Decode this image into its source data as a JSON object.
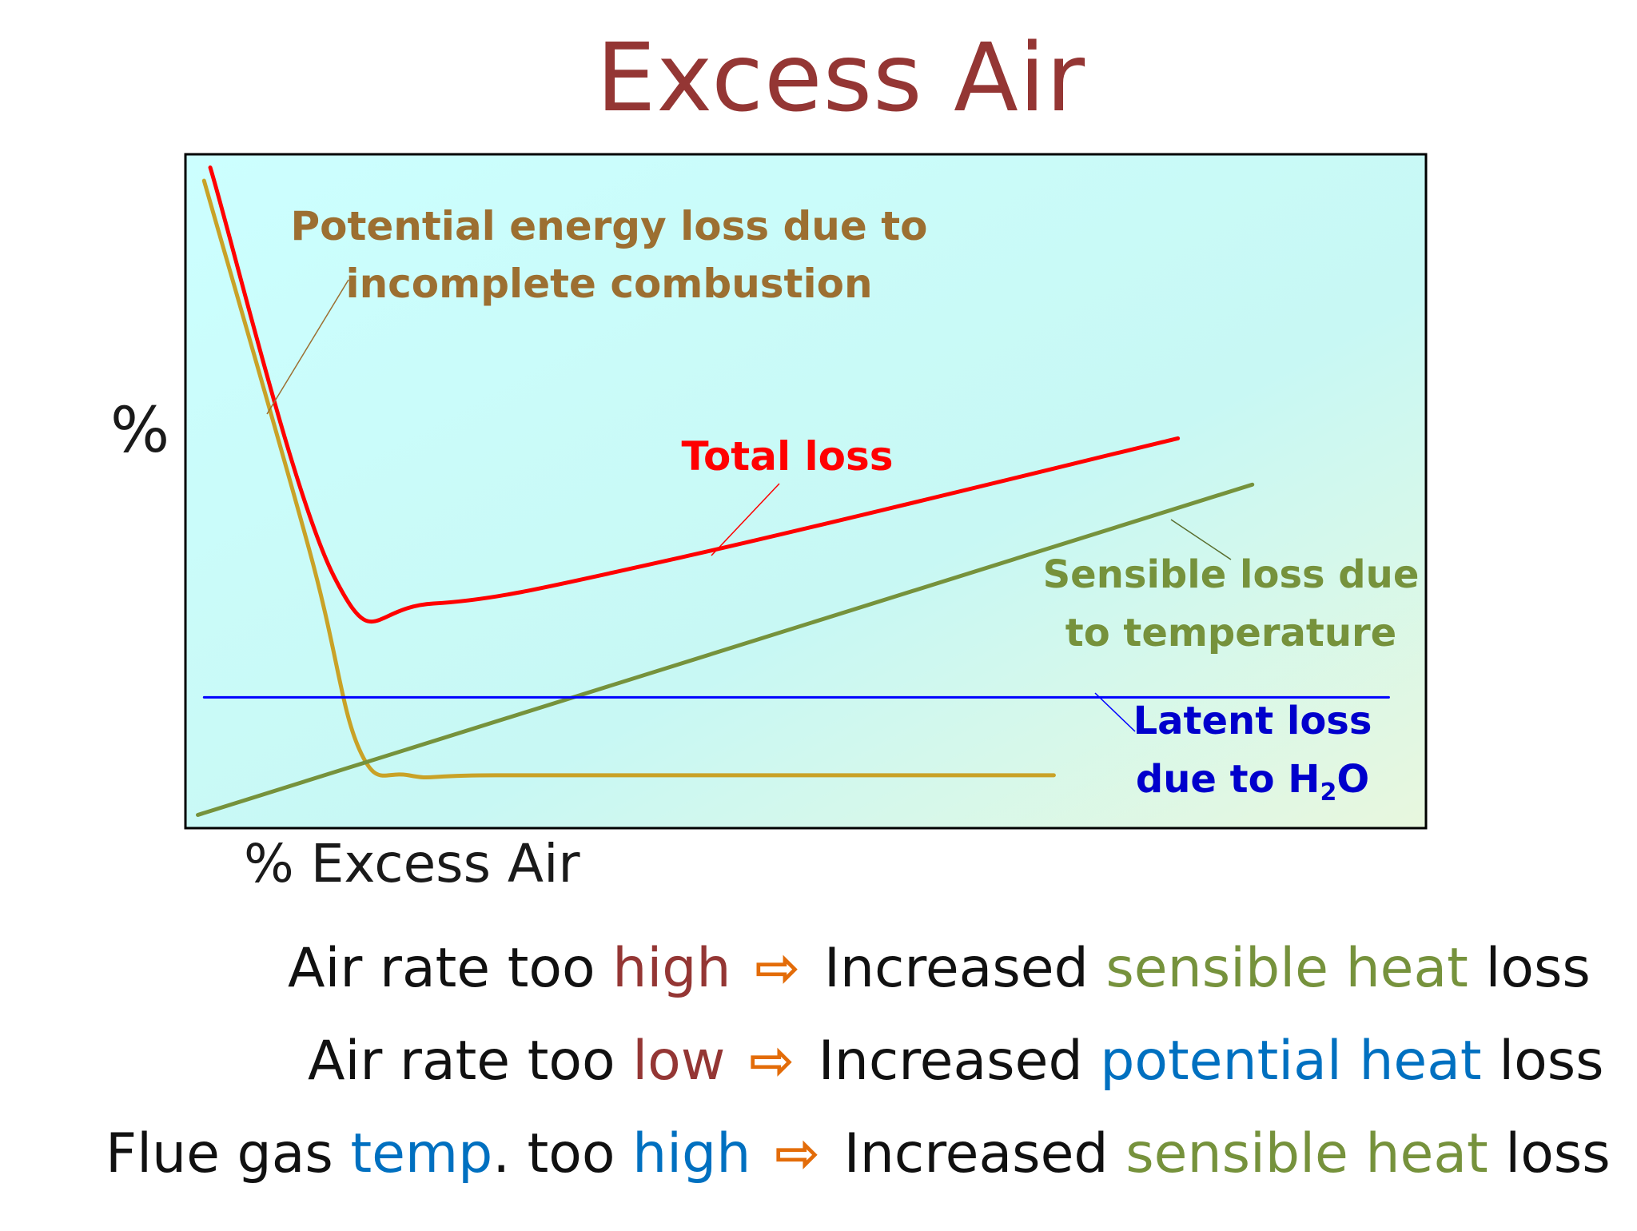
{
  "title": "Excess Air",
  "chart_data": {
    "type": "line",
    "title": "Excess Air",
    "xlabel": "% Excess Air",
    "ylabel": "%",
    "grid": false,
    "background": "#ccffff",
    "series": [
      {
        "key": "total",
        "label_lines": [
          "Total loss"
        ],
        "color": "#ff0000",
        "points": [
          [
            2,
            98
          ],
          [
            12,
            36
          ],
          [
            20,
            32
          ],
          [
            40,
            39
          ],
          [
            80,
            57
          ]
        ]
      },
      {
        "key": "potential",
        "label_lines": [
          "Potential energy loss due to",
          "incomplete combustion"
        ],
        "color": "#c9a227",
        "text_color": "#9c6f31",
        "points": [
          [
            1.5,
            96
          ],
          [
            10,
            40
          ],
          [
            14,
            10
          ],
          [
            18,
            6
          ],
          [
            25,
            6
          ],
          [
            50,
            6
          ],
          [
            70,
            6
          ]
        ]
      },
      {
        "key": "sensible",
        "label_lines": [
          "Sensible loss due",
          "to temperature"
        ],
        "color": "#76923c",
        "text_color": "#76923c",
        "points": [
          [
            1,
            0
          ],
          [
            86,
            50
          ]
        ]
      },
      {
        "key": "latent",
        "label_lines": [
          "Latent loss",
          "due to H",
          "2",
          "O"
        ],
        "color": "#0000ff",
        "text_color": "#0000cc",
        "points": [
          [
            1.5,
            17.8
          ],
          [
            97,
            17.8
          ]
        ]
      }
    ],
    "xlim": [
      0,
      100
    ],
    "ylim": [
      -2,
      100
    ]
  },
  "bullets": [
    {
      "parts": [
        {
          "text": "Air rate too ",
          "color": ""
        },
        {
          "text": "high",
          "color": "red"
        },
        {
          "text": " ⇨ ",
          "color": "arrow"
        },
        {
          "text": "Increased ",
          "color": ""
        },
        {
          "text": "sensible heat",
          "color": "green"
        },
        {
          "text": " loss",
          "color": ""
        }
      ]
    },
    {
      "parts": [
        {
          "text": "Air rate too ",
          "color": ""
        },
        {
          "text": "low",
          "color": "red"
        },
        {
          "text": " ⇨ ",
          "color": "arrow"
        },
        {
          "text": "Increased ",
          "color": ""
        },
        {
          "text": "potential heat",
          "color": "blue"
        },
        {
          "text": " loss",
          "color": ""
        }
      ]
    },
    {
      "parts": [
        {
          "text": "Flue gas ",
          "color": ""
        },
        {
          "text": "temp",
          "color": "blue"
        },
        {
          "text": ". too ",
          "color": ""
        },
        {
          "text": "high",
          "color": "blue"
        },
        {
          "text": " ⇨ ",
          "color": "arrow"
        },
        {
          "text": "Increased ",
          "color": ""
        },
        {
          "text": "sensible heat",
          "color": "green"
        },
        {
          "text": " loss",
          "color": ""
        }
      ]
    }
  ]
}
